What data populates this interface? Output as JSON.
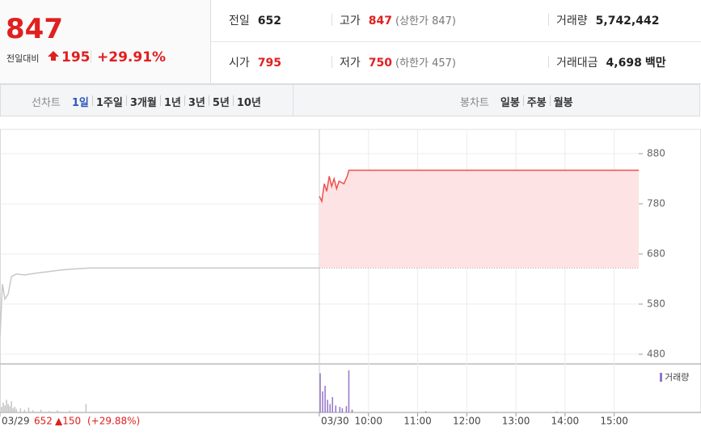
{
  "header": {
    "price": "847",
    "change_label": "전일대비",
    "change": "195",
    "change_pct": "+29.91%"
  },
  "quotes": [
    {
      "label": "전일",
      "value": "652",
      "color": "#222222"
    },
    {
      "label": "고가",
      "value": "847",
      "note": "(상한가 847)",
      "color": "#e0201f"
    },
    {
      "label": "거래량",
      "value": "5,742,442",
      "color": "#222222"
    },
    {
      "label": "시가",
      "value": "795",
      "color": "#e0201f"
    },
    {
      "label": "저가",
      "value": "750",
      "note": "(하한가 457)",
      "color": "#e0201f"
    },
    {
      "label": "거래대금",
      "value": "4,698",
      "unit": "백만",
      "color": "#222222"
    }
  ],
  "line_tabs": {
    "label": "선차트",
    "items": [
      "1일",
      "1주일",
      "3개월",
      "1년",
      "3년",
      "5년",
      "10년"
    ],
    "active": 0
  },
  "candle_tabs": {
    "label": "봉차트",
    "items": [
      "일봉",
      "주봉",
      "월봉"
    ]
  },
  "chart_data": {
    "type": "line",
    "xlim": [
      0,
      780
    ],
    "xticks": [
      {
        "value": 0,
        "label": "03/29"
      },
      {
        "value": 390,
        "label": "03/30"
      },
      {
        "value": 450,
        "label": "10:00"
      },
      {
        "value": 510,
        "label": "11:00"
      },
      {
        "value": 570,
        "label": "12:00"
      },
      {
        "value": 630,
        "label": "13:00"
      },
      {
        "value": 690,
        "label": "14:00"
      },
      {
        "value": 750,
        "label": "15:00"
      }
    ],
    "ylim": [
      480,
      880
    ],
    "yticks": [
      480,
      580,
      680,
      780,
      880
    ],
    "grid": true,
    "baseline": 652,
    "series": [
      {
        "color": "#c8c8c8",
        "x": [
          0,
          3,
          6,
          10,
          14,
          20,
          30,
          45,
          60,
          75,
          90,
          110,
          390
        ],
        "values": [
          515,
          620,
          590,
          600,
          635,
          640,
          638,
          642,
          645,
          648,
          650,
          652,
          652
        ]
      },
      {
        "color": "#f05050",
        "fill": "#fde3e3",
        "x": [
          390,
          393,
          396,
          399,
          402,
          405,
          408,
          411,
          414,
          420,
          424,
          426,
          780
        ],
        "values": [
          795,
          785,
          820,
          805,
          835,
          815,
          830,
          810,
          825,
          820,
          835,
          847,
          847
        ]
      }
    ],
    "volume_series": [
      {
        "color": "#c4c4c4",
        "x": [
          2,
          4,
          6,
          8,
          10,
          12,
          14,
          16,
          18,
          20,
          25,
          30,
          35,
          40,
          50,
          60,
          70,
          85,
          105
        ],
        "values": [
          40000,
          70000,
          50000,
          90000,
          60000,
          45000,
          80000,
          30000,
          40000,
          25000,
          30000,
          20000,
          35000,
          15000,
          20000,
          10000,
          15000,
          12000,
          60000
        ]
      },
      {
        "name": "거래량",
        "color": "#9474c9",
        "x": [
          391,
          394,
          397,
          400,
          403,
          406,
          410,
          415,
          418,
          423,
          426,
          430,
          520,
          680
        ],
        "values": [
          280000,
          150000,
          190000,
          90000,
          60000,
          110000,
          50000,
          40000,
          30000,
          45000,
          300000,
          20000,
          8000,
          5000
        ]
      }
    ],
    "prev_day": {
      "close": "652",
      "change": "▲150",
      "pct": "(+29.88%)"
    }
  }
}
